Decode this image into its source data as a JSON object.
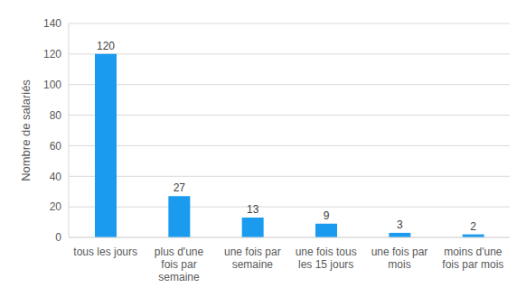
{
  "chart_data": {
    "type": "bar",
    "y_label": "Nombre de salariés",
    "categories": [
      "tous les jours",
      "plus d'une fois par semaine",
      "une fois par semaine",
      "une fois tous les 15 jours",
      "une fois par mois",
      "moins d'une fois par mois"
    ],
    "values": [
      120,
      27,
      13,
      9,
      3,
      2
    ],
    "color": "#1a9bf0",
    "ylim": [
      0,
      140
    ],
    "yticks": [
      0,
      20,
      40,
      60,
      80,
      100,
      120,
      140
    ],
    "grid": true,
    "data_labels": true
  }
}
